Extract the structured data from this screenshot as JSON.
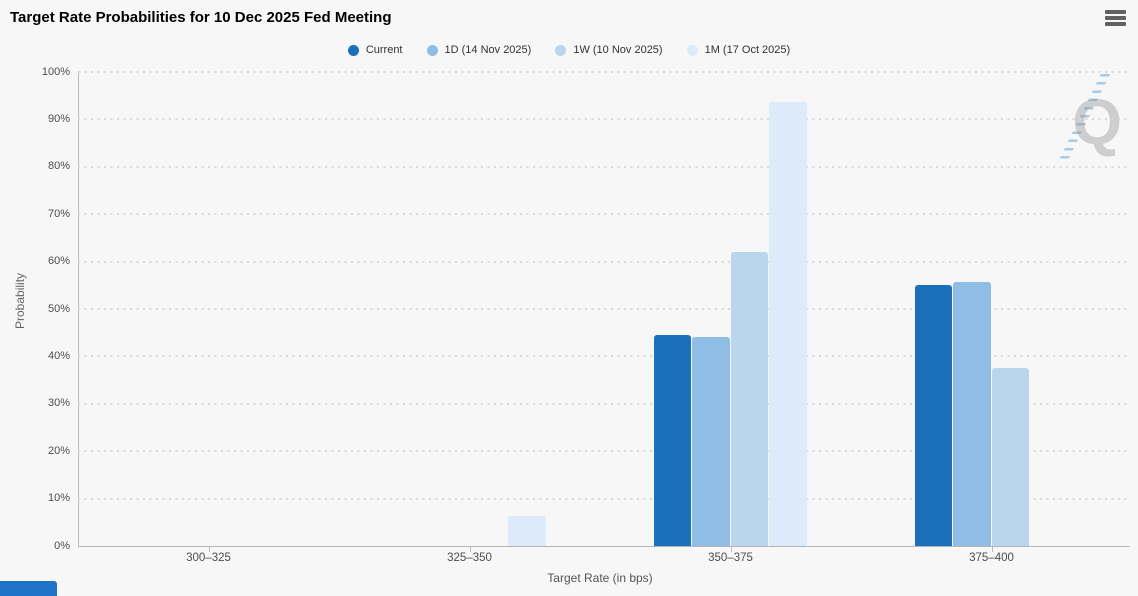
{
  "header": {
    "title": "Target Rate Probabilities for 10 Dec 2025 Fed Meeting"
  },
  "menu": {
    "icon": "hamburger-icon"
  },
  "watermark": {
    "letter": "Q"
  },
  "bottom_fragment": {
    "color": "#1e72c8"
  },
  "chart_data": {
    "type": "bar",
    "title": "Target Rate Probabilities for 10 Dec 2025 Fed Meeting",
    "xlabel": "Target Rate (in bps)",
    "ylabel": "Probability",
    "categories": [
      "300–325",
      "325–350",
      "350–375",
      "375–400"
    ],
    "series": [
      {
        "name": "Current",
        "color": "#1a70ba",
        "values": [
          0,
          0,
          44.6,
          55.1
        ]
      },
      {
        "name": "1D (14 Nov 2025)",
        "color": "#8fbde5",
        "values": [
          0,
          0,
          44.2,
          55.6
        ]
      },
      {
        "name": "1W (10 Nov 2025)",
        "color": "#bad6ef",
        "values": [
          0,
          0,
          62.1,
          37.5
        ]
      },
      {
        "name": "1M (17 Oct 2025)",
        "color": "#dceaf9",
        "values": [
          0,
          6.3,
          93.7,
          0
        ]
      }
    ],
    "ylim": [
      0,
      100
    ],
    "y_tick_values": [
      0,
      10,
      20,
      30,
      40,
      50,
      60,
      70,
      80,
      90,
      100
    ],
    "y_tick_labels": [
      "0%",
      "10%",
      "20%",
      "30%",
      "40%",
      "50%",
      "60%",
      "70%",
      "80%",
      "90%",
      "100%"
    ],
    "grid": "dotted-horizontal",
    "legend_position": "top-center"
  }
}
